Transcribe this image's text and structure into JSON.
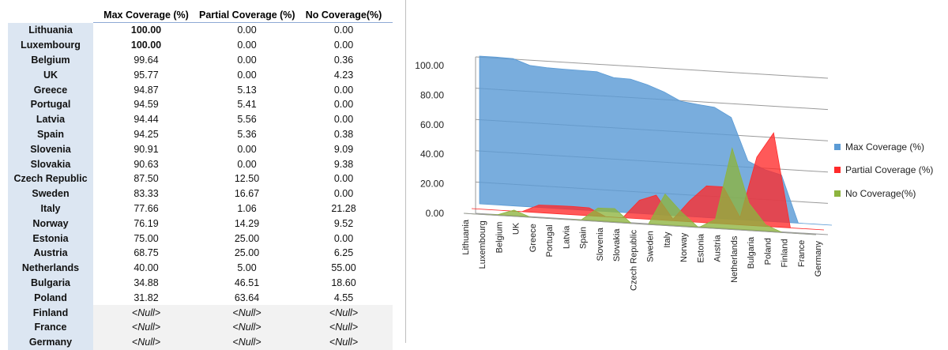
{
  "table": {
    "headers": [
      "",
      "Max Coverage (%)",
      "Partial Coverage (%)",
      "No Coverage(%)"
    ],
    "rows": [
      {
        "country": "Lithuania",
        "max": "100.00",
        "partial": "0.00",
        "none": "0.00"
      },
      {
        "country": "Luxembourg",
        "max": "100.00",
        "partial": "0.00",
        "none": "0.00"
      },
      {
        "country": "Belgium",
        "max": "99.64",
        "partial": "0.00",
        "none": "0.36"
      },
      {
        "country": "UK",
        "max": "95.77",
        "partial": "0.00",
        "none": "4.23"
      },
      {
        "country": "Greece",
        "max": "94.87",
        "partial": "5.13",
        "none": "0.00"
      },
      {
        "country": "Portugal",
        "max": "94.59",
        "partial": "5.41",
        "none": "0.00"
      },
      {
        "country": "Latvia",
        "max": "94.44",
        "partial": "5.56",
        "none": "0.00"
      },
      {
        "country": "Spain",
        "max": "94.25",
        "partial": "5.36",
        "none": "0.38"
      },
      {
        "country": "Slovenia",
        "max": "90.91",
        "partial": "0.00",
        "none": "9.09"
      },
      {
        "country": "Slovakia",
        "max": "90.63",
        "partial": "0.00",
        "none": "9.38"
      },
      {
        "country": "Czech Republic",
        "max": "87.50",
        "partial": "12.50",
        "none": "0.00"
      },
      {
        "country": "Sweden",
        "max": "83.33",
        "partial": "16.67",
        "none": "0.00"
      },
      {
        "country": "Italy",
        "max": "77.66",
        "partial": "1.06",
        "none": "21.28"
      },
      {
        "country": "Norway",
        "max": "76.19",
        "partial": "14.29",
        "none": "9.52"
      },
      {
        "country": "Estonia",
        "max": "75.00",
        "partial": "25.00",
        "none": "0.00"
      },
      {
        "country": "Austria",
        "max": "68.75",
        "partial": "25.00",
        "none": "6.25"
      },
      {
        "country": "Netherlands",
        "max": "40.00",
        "partial": "5.00",
        "none": "55.00"
      },
      {
        "country": "Bulgaria",
        "max": "34.88",
        "partial": "46.51",
        "none": "18.60"
      },
      {
        "country": "Poland",
        "max": "31.82",
        "partial": "63.64",
        "none": "4.55"
      },
      {
        "country": "Finland",
        "max": "<Null>",
        "partial": "<Null>",
        "none": "<Null>"
      },
      {
        "country": "France",
        "max": "<Null>",
        "partial": "<Null>",
        "none": "<Null>"
      },
      {
        "country": "Germany",
        "max": "<Null>",
        "partial": "<Null>",
        "none": "<Null>"
      }
    ]
  },
  "chart_data": {
    "type": "area",
    "categories": [
      "Lithuania",
      "Luxembourg",
      "Belgium",
      "UK",
      "Greece",
      "Portugal",
      "Latvia",
      "Spain",
      "Slovenia",
      "Slovakia",
      "Czech Republic",
      "Sweden",
      "Italy",
      "Norway",
      "Estonia",
      "Austria",
      "Netherlands",
      "Bulgaria",
      "Poland",
      "Finland",
      "France",
      "Germany"
    ],
    "series": [
      {
        "name": "Max Coverage (%)",
        "color": "#5b9bd5",
        "values": [
          100,
          100,
          99.64,
          95.77,
          94.87,
          94.59,
          94.44,
          94.25,
          90.91,
          90.63,
          87.5,
          83.33,
          77.66,
          76.19,
          75,
          68.75,
          40,
          34.88,
          31.82,
          0,
          0,
          0
        ]
      },
      {
        "name": "Partial Coverage (%)",
        "color": "#ff2a2a",
        "values": [
          0,
          0,
          0,
          0,
          5.13,
          5.41,
          5.56,
          5.36,
          0,
          0,
          12.5,
          16.67,
          1.06,
          14.29,
          25,
          25,
          5,
          46.51,
          63.64,
          0,
          0,
          0
        ]
      },
      {
        "name": "No Coverage(%)",
        "color": "#8db43e",
        "values": [
          0,
          0,
          0.36,
          4.23,
          0,
          0,
          0,
          0.38,
          9.09,
          9.38,
          0,
          0,
          21.28,
          9.52,
          0,
          6.25,
          55,
          18.6,
          4.55,
          0,
          0,
          0
        ]
      }
    ],
    "y_ticks": [
      "100.00",
      "80.00",
      "60.00",
      "40.00",
      "20.00",
      "0.00"
    ],
    "ylim": [
      0,
      100
    ],
    "grid": true,
    "legend": "right",
    "view": "3d-perspective"
  }
}
